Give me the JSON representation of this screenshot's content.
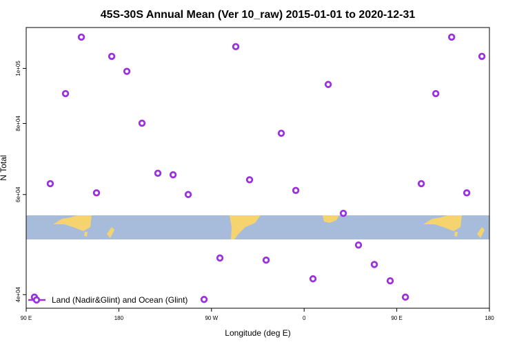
{
  "chart_data": {
    "type": "scatter",
    "title": "45S-30S Annual Mean (Ver 10_raw)   2015-01-01 to 2020-12-31",
    "x_label": "Longitude (deg E)",
    "y_label": "N Total",
    "y_scale": "log",
    "legend": "bottom-left",
    "xlim": [
      90,
      540
    ],
    "xticks": [
      {
        "value": 90,
        "label": "90 E"
      },
      {
        "value": 180,
        "label": "180"
      },
      {
        "value": 270,
        "label": "90 W"
      },
      {
        "value": 360,
        "label": "0"
      },
      {
        "value": 450,
        "label": "90 E"
      },
      {
        "value": 540,
        "label": "180"
      }
    ],
    "ylim": [
      37860,
      118000
    ],
    "yticks": [
      {
        "value": 40000,
        "label": "4e+04"
      },
      {
        "value": 60000,
        "label": "6e+04"
      },
      {
        "value": 80000,
        "label": "8e+04"
      },
      {
        "value": 100000,
        "label": "1e+05"
      }
    ],
    "series": [
      {
        "name": "Land (Nadir&Glint) and Ocean (Glint)",
        "color": "#9b30e0",
        "x": [
          98,
          113.4,
          128.2,
          143.6,
          158.3,
          173.1,
          187.8,
          202.5,
          217.9,
          232.7,
          247.4,
          262.8,
          278.2,
          293.6,
          307,
          323.1,
          337.8,
          351.9,
          368.6,
          383.4,
          398.1,
          412.8,
          428.2,
          443.6,
          458.4,
          473.8,
          487.9,
          503.3,
          518,
          532.7
        ],
        "values": [
          39600,
          62700,
          90300,
          113500,
          60400,
          105000,
          98800,
          80100,
          65400,
          65000,
          60000,
          39230,
          46400,
          109200,
          63700,
          46000,
          76900,
          61000,
          42650,
          93700,
          55600,
          48900,
          45200,
          42300,
          39600,
          62700,
          90300,
          113500,
          60400,
          105000
        ]
      }
    ]
  }
}
